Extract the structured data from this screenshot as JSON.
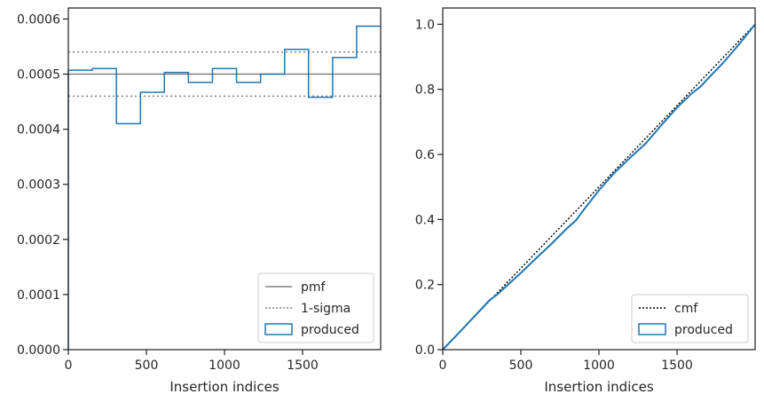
{
  "chart_data": [
    {
      "type": "histogram",
      "xlabel": "Insertion indices",
      "ylabel": "",
      "xlim": [
        0,
        2000
      ],
      "ylim": [
        0,
        0.00062
      ],
      "x_ticks": [
        0,
        500,
        1000,
        1500
      ],
      "y_ticks": [
        0,
        0.0001,
        0.0002,
        0.0003,
        0.0004,
        0.0005,
        0.0006
      ],
      "y_tick_labels": [
        "0.0000",
        "0.0001",
        "0.0002",
        "0.0003",
        "0.0004",
        "0.0005",
        "0.0006"
      ],
      "grid": false,
      "legend_position": "lower-right",
      "pmf": 0.0005,
      "sigma_band": [
        0.00046,
        0.00054
      ],
      "bins": [
        {
          "x0": 0,
          "x1": 154,
          "y": 0.000507
        },
        {
          "x0": 154,
          "x1": 308,
          "y": 0.00051
        },
        {
          "x0": 308,
          "x1": 462,
          "y": 0.00041
        },
        {
          "x0": 462,
          "x1": 615,
          "y": 0.000467
        },
        {
          "x0": 615,
          "x1": 769,
          "y": 0.000503
        },
        {
          "x0": 769,
          "x1": 923,
          "y": 0.000485
        },
        {
          "x0": 923,
          "x1": 1077,
          "y": 0.00051
        },
        {
          "x0": 1077,
          "x1": 1231,
          "y": 0.000485
        },
        {
          "x0": 1231,
          "x1": 1385,
          "y": 0.0005
        },
        {
          "x0": 1385,
          "x1": 1538,
          "y": 0.000545
        },
        {
          "x0": 1538,
          "x1": 1692,
          "y": 0.000458
        },
        {
          "x0": 1692,
          "x1": 1846,
          "y": 0.00053
        },
        {
          "x0": 1846,
          "x1": 2000,
          "y": 0.000587
        }
      ],
      "legend": [
        {
          "label": "pmf",
          "style": "solid",
          "color": "#808080"
        },
        {
          "label": "1-sigma",
          "style": "dotted",
          "color": "#808080"
        },
        {
          "label": "produced",
          "style": "box",
          "color": "#1f77b4"
        }
      ]
    },
    {
      "type": "line",
      "xlabel": "Insertion indices",
      "ylabel": "",
      "xlim": [
        0,
        2000
      ],
      "ylim": [
        0,
        1.05
      ],
      "x_ticks": [
        0,
        500,
        1000,
        1500
      ],
      "y_ticks": [
        0,
        0.2,
        0.4,
        0.6,
        0.8,
        1.0
      ],
      "y_tick_labels": [
        "0.0",
        "0.2",
        "0.4",
        "0.6",
        "0.8",
        "1.0"
      ],
      "grid": false,
      "legend_position": "lower-right",
      "series": [
        {
          "name": "cmf",
          "style": "dotted",
          "color": "#000000",
          "x": [
            0,
            2000
          ],
          "y": [
            0,
            1.0
          ]
        },
        {
          "name": "produced",
          "style": "solid",
          "color": "#1f77b4",
          "x": [
            0,
            100,
            200,
            300,
            350,
            400,
            500,
            600,
            700,
            800,
            850,
            900,
            1000,
            1100,
            1200,
            1250,
            1300,
            1400,
            1500,
            1600,
            1650,
            1700,
            1800,
            1900,
            2000
          ],
          "y": [
            0,
            0.05,
            0.101,
            0.152,
            0.17,
            0.192,
            0.236,
            0.282,
            0.327,
            0.375,
            0.396,
            0.428,
            0.49,
            0.544,
            0.59,
            0.612,
            0.634,
            0.69,
            0.744,
            0.79,
            0.808,
            0.834,
            0.884,
            0.94,
            1.0
          ]
        }
      ],
      "legend": [
        {
          "label": "cmf",
          "style": "dotted",
          "color": "#000000"
        },
        {
          "label": "produced",
          "style": "box",
          "color": "#1f77b4"
        }
      ]
    }
  ]
}
